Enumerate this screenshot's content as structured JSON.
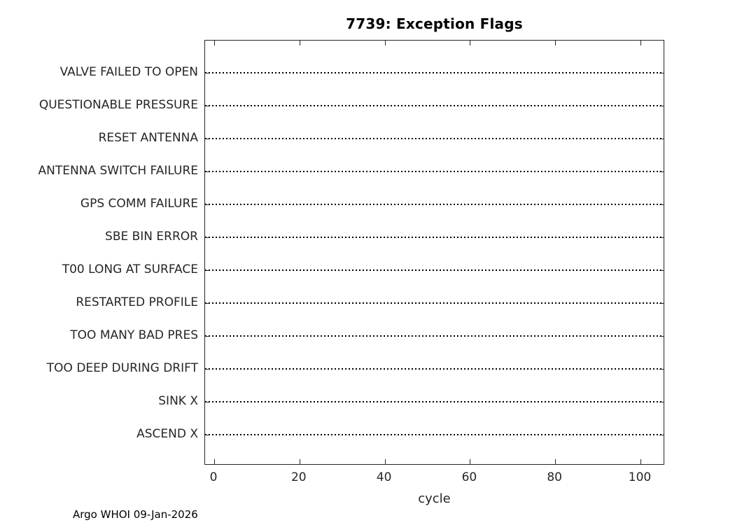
{
  "chart_data": {
    "type": "scatter",
    "title": "7739: Exception Flags",
    "xlabel": "cycle",
    "x_ticks": [
      0,
      20,
      40,
      60,
      80,
      100
    ],
    "xlim": [
      -2,
      106
    ],
    "categories_top_to_bottom": [
      "VALVE FAILED TO OPEN",
      "QUESTIONABLE PRESSURE",
      "RESET ANTENNA",
      "ANTENNA SWITCH FAILURE",
      "GPS COMM FAILURE",
      "SBE BIN ERROR",
      "T00 LONG AT SURFACE",
      "RESTARTED PROFILE",
      "TOO MANY BAD PRES",
      "TOO DEEP DURING DRIFT",
      "SINK X",
      "ASCEND X"
    ],
    "points": [],
    "grid": "dotted horizontal line at each category",
    "legend": null
  },
  "footer": {
    "caption": "Argo WHOI 09-Jan-2026"
  },
  "colors": {
    "background": "#ffffff",
    "axis": "#262626",
    "tick_text": "#262626",
    "title_text": "#000000",
    "gridline": "#000000"
  }
}
